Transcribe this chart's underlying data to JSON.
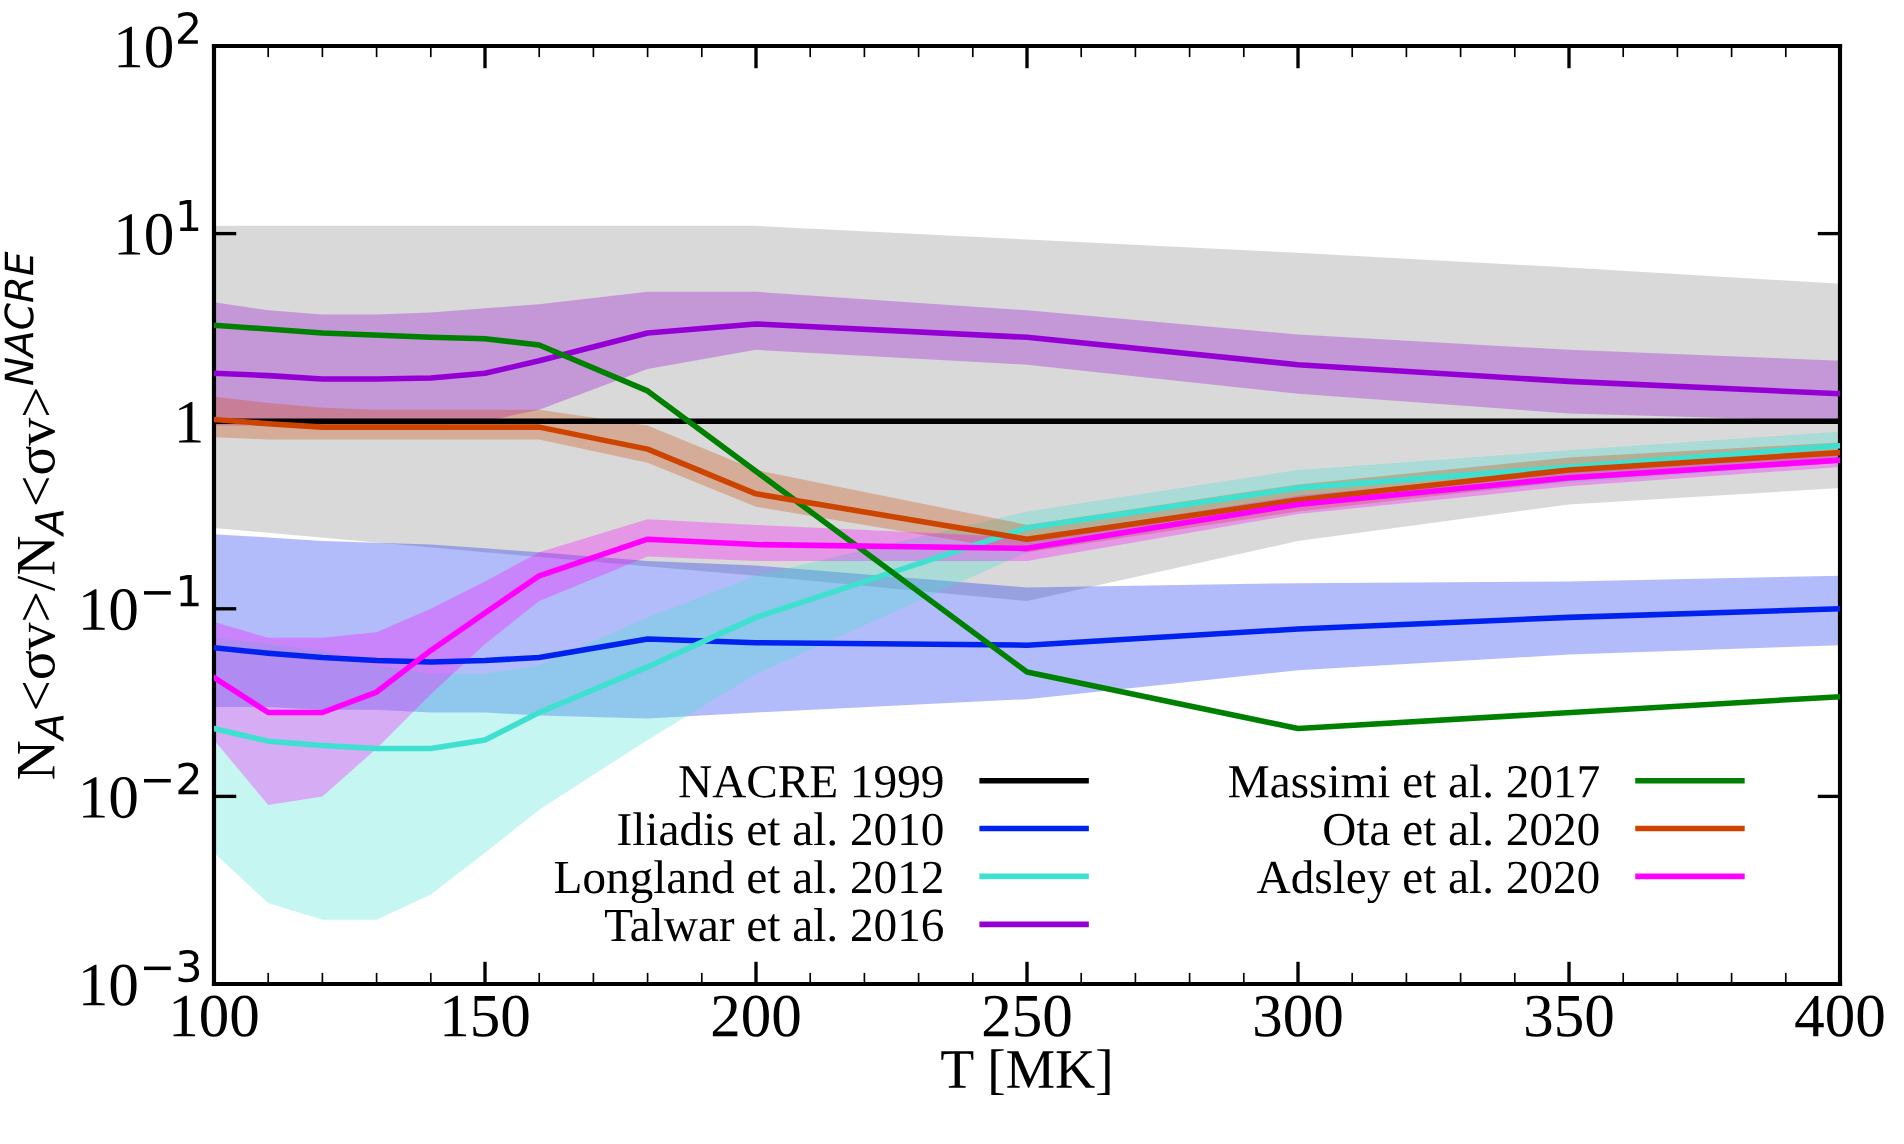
{
  "chart_data": {
    "type": "line",
    "xlabel": "T [MK]",
    "ylabel": "N$_{A}$<σv>/N$_{A}$<σv>$^{NACRE}$",
    "log": "y",
    "xlim": [
      100,
      400
    ],
    "xticks": [
      100,
      150,
      200,
      250,
      300,
      350,
      400
    ],
    "ylim": [
      0.001,
      100
    ],
    "yticks": [
      {
        "value": 0.001,
        "label": "10$^{−3}$"
      },
      {
        "value": 0.01,
        "label": "10$^{−2}$"
      },
      {
        "value": 0.1,
        "label": "10$^{−1}$"
      },
      1,
      {
        "value": 10,
        "label": "10$^{1}$"
      },
      {
        "value": 100,
        "label": "10$^{2}$"
      }
    ],
    "grid": false,
    "legend": "bottom right",
    "line_style": "solid",
    "marker": "none",
    "series": [
      {
        "name": "NACRE 1999",
        "color": "#000000",
        "x": [
          100,
          150,
          200,
          250,
          300,
          350,
          400
        ],
        "values": [
          1,
          1,
          1,
          1,
          1,
          1,
          1
        ],
        "upper": [
          11,
          11,
          11,
          9.3,
          7.9,
          6.6,
          5.4
        ],
        "lower": [
          0.27,
          0.2,
          0.15,
          0.11,
          0.23,
          0.36,
          0.44
        ]
      },
      {
        "name": "Iliadis et al. 2010",
        "color": "#0022ee",
        "x": [
          100,
          110,
          120,
          130,
          140,
          150,
          160,
          180,
          200,
          250,
          300,
          350,
          400
        ],
        "values": [
          0.062,
          0.058,
          0.055,
          0.053,
          0.052,
          0.053,
          0.055,
          0.069,
          0.066,
          0.064,
          0.078,
          0.09,
          0.1
        ],
        "upper": [
          0.25,
          0.24,
          0.23,
          0.225,
          0.22,
          0.21,
          0.2,
          0.18,
          0.17,
          0.13,
          0.137,
          0.14,
          0.15
        ],
        "lower": [
          0.03,
          0.03,
          0.029,
          0.029,
          0.028,
          0.028,
          0.027,
          0.026,
          0.028,
          0.033,
          0.047,
          0.057,
          0.064
        ]
      },
      {
        "name": "Longland et al. 2012",
        "color": "#40e0d0",
        "x": [
          100,
          110,
          120,
          130,
          140,
          150,
          160,
          180,
          200,
          250,
          300,
          350,
          400
        ],
        "values": [
          0.023,
          0.0197,
          0.0187,
          0.018,
          0.018,
          0.02,
          0.028,
          0.049,
          0.09,
          0.27,
          0.44,
          0.57,
          0.74
        ],
        "upper": [
          0.07,
          0.065,
          0.06,
          0.05,
          0.045,
          0.045,
          0.05,
          0.09,
          0.15,
          0.33,
          0.55,
          0.7,
          0.88
        ],
        "lower": [
          0.005,
          0.0027,
          0.0022,
          0.0022,
          0.003,
          0.005,
          0.0085,
          0.02,
          0.045,
          0.2,
          0.35,
          0.47,
          0.6
        ]
      },
      {
        "name": "Talwar et al. 2016",
        "color": "#9400d3",
        "x": [
          100,
          110,
          120,
          130,
          140,
          150,
          160,
          180,
          200,
          250,
          300,
          350,
          400
        ],
        "values": [
          1.8,
          1.75,
          1.68,
          1.68,
          1.7,
          1.8,
          2.1,
          2.95,
          3.3,
          2.8,
          2.0,
          1.63,
          1.4
        ],
        "upper": [
          4.3,
          3.9,
          3.7,
          3.7,
          3.8,
          4.0,
          4.2,
          4.9,
          4.9,
          3.9,
          2.9,
          2.4,
          2.1
        ],
        "lower": [
          0.95,
          0.95,
          0.95,
          0.95,
          0.95,
          1.0,
          1.15,
          1.9,
          2.4,
          2.0,
          1.4,
          1.1,
          1.0
        ]
      },
      {
        "name": "Massimi et al. 2017",
        "color": "#008000",
        "x": [
          100,
          120,
          140,
          150,
          160,
          180,
          250,
          300,
          400
        ],
        "values": [
          3.25,
          2.95,
          2.8,
          2.75,
          2.55,
          1.45,
          0.046,
          0.023,
          0.034
        ]
      },
      {
        "name": "Ota et al. 2020",
        "color": "#cc4400",
        "x": [
          100,
          110,
          120,
          130,
          140,
          150,
          160,
          180,
          200,
          250,
          300,
          350,
          400
        ],
        "values": [
          1.02,
          0.97,
          0.93,
          0.93,
          0.93,
          0.93,
          0.93,
          0.71,
          0.41,
          0.235,
          0.38,
          0.55,
          0.68
        ],
        "upper": [
          1.35,
          1.25,
          1.18,
          1.15,
          1.15,
          1.15,
          1.15,
          0.95,
          0.55,
          0.28,
          0.46,
          0.64,
          0.77
        ],
        "lower": [
          0.82,
          0.8,
          0.8,
          0.8,
          0.8,
          0.8,
          0.8,
          0.6,
          0.35,
          0.2,
          0.33,
          0.48,
          0.6
        ]
      },
      {
        "name": "Adsley et al. 2020",
        "color": "#ff00ff",
        "x": [
          100,
          110,
          120,
          130,
          140,
          150,
          160,
          180,
          200,
          250,
          300,
          350,
          400
        ],
        "values": [
          0.043,
          0.028,
          0.028,
          0.036,
          0.06,
          0.095,
          0.15,
          0.235,
          0.22,
          0.21,
          0.36,
          0.5,
          0.62
        ],
        "upper": [
          0.085,
          0.07,
          0.07,
          0.075,
          0.1,
          0.14,
          0.2,
          0.3,
          0.28,
          0.24,
          0.4,
          0.55,
          0.68
        ],
        "lower": [
          0.02,
          0.009,
          0.01,
          0.018,
          0.035,
          0.065,
          0.11,
          0.19,
          0.18,
          0.18,
          0.32,
          0.45,
          0.57
        ]
      }
    ]
  }
}
